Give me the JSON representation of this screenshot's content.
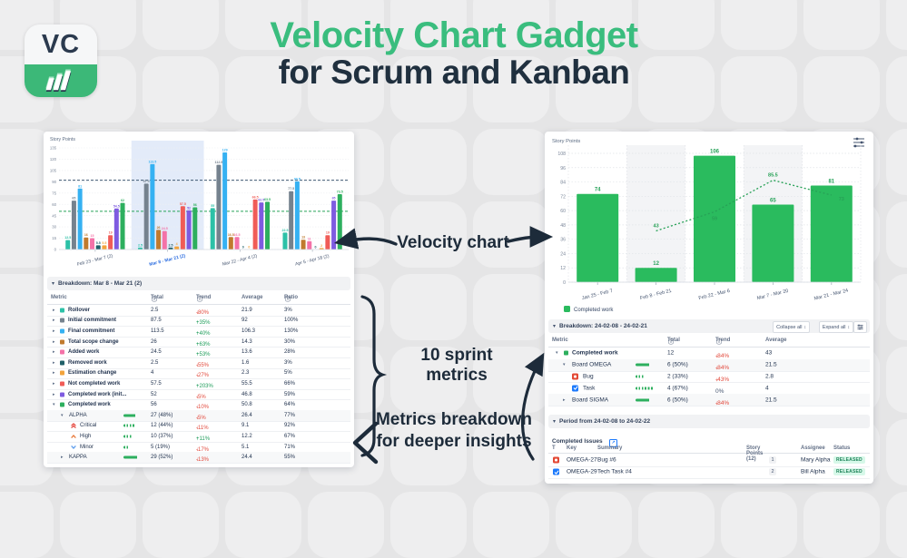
{
  "header": {
    "logo_text": "VC",
    "title_line1": "Velocity Chart Gadget",
    "title_line2": "for Scrum and Kanban"
  },
  "annotations": {
    "velocity_chart": "Velocity chart",
    "sprint_metrics": "10 sprint metrics",
    "breakdown_line1": "Metrics breakdown",
    "breakdown_line2": "for deeper insights"
  },
  "colors": {
    "accent_green": "#3abd7e",
    "navy": "#1d2b3a",
    "trend_up": "#1f9d5b",
    "trend_down": "#e2483b",
    "highlight_band": "#e3ebf9",
    "bar_green": "#2abb5e"
  },
  "chart_data": [
    {
      "type": "bar",
      "ylabel": "Story Points",
      "ylim": [
        0,
        135
      ],
      "ytick_step": 15,
      "grid": true,
      "categories": [
        "Feb 23 - Mar 7 (2)",
        "Mar 8 - Mar 21 (2)",
        "Mar 22 - Apr 4 (2)",
        "Apr 5 - Apr 18 (2)"
      ],
      "highlighted_category_index": 1,
      "series": [
        {
          "name": "Rollover",
          "color": "#2cc1a7",
          "values": [
            12.5,
            2.5,
            55,
            22.5
          ]
        },
        {
          "name": "Initial commitment",
          "color": "#75828e",
          "values": [
            65,
            87.5,
            112.5,
            77.5
          ]
        },
        {
          "name": "Final commitment",
          "color": "#35b1f2",
          "values": [
            81,
            113.5,
            129,
            90.5
          ]
        },
        {
          "name": "Total scope change",
          "color": "#c07a2e",
          "values": [
            16,
            26,
            16.5,
            13
          ]
        },
        {
          "name": "Added work",
          "color": "#f472a8",
          "values": [
            15,
            24.5,
            16.5,
            11
          ]
        },
        {
          "name": "Removed work",
          "color": "#1f5f68",
          "values": [
            5.5,
            2.5,
            0,
            0
          ]
        },
        {
          "name": "Estimation change",
          "color": "#f2a33c",
          "values": [
            5.5,
            4,
            0,
            2
          ]
        },
        {
          "name": "Not completed work",
          "color": "#f05c57",
          "values": [
            19,
            57.5,
            66.5,
            19
          ]
        },
        {
          "name": "Completed work (initial)",
          "color": "#7e5be0",
          "values": [
            54.5,
            52,
            62.5,
            65
          ]
        },
        {
          "name": "Completed work",
          "color": "#2daf5e",
          "values": [
            62,
            56,
            63.5,
            73.5
          ]
        }
      ],
      "reference_lines": [
        {
          "value": 92,
          "color": "#3f5872",
          "style": "dashed"
        },
        {
          "value": 50.8,
          "color": "#27a35a",
          "style": "dashed"
        }
      ]
    },
    {
      "type": "bar",
      "ylabel": "Story Points",
      "ylim": [
        0,
        108
      ],
      "ytick_step": 12,
      "grid": true,
      "categories": [
        "Jan 25 - Feb 7",
        "Feb 8 - Feb 21",
        "Feb 22 - Mar 6",
        "Mar 7 - Mar 20",
        "Mar 21 - Mar 24"
      ],
      "shaded_column_indexes": [
        1,
        3
      ],
      "series": [
        {
          "name": "Completed work",
          "color": "#2abb5e",
          "values": [
            74,
            12,
            106,
            65,
            81
          ]
        }
      ],
      "trend_line": {
        "color": "#27a156",
        "style": "dotted",
        "points": [
          {
            "category_index": 1,
            "value": 43
          },
          {
            "category_index": 2,
            "value": 59
          },
          {
            "category_index": 3,
            "value": 85.5
          },
          {
            "category_index": 4,
            "value": 73
          }
        ]
      },
      "legend": [
        {
          "label": "Completed work",
          "color": "#2abb5e"
        }
      ]
    }
  ],
  "left_panel": {
    "breakdown": {
      "title": "Breakdown: Mar 8 - Mar 21 (2)",
      "columns": [
        {
          "label": "Metric"
        },
        {
          "label": "Total",
          "info": true
        },
        {
          "label": "Trend",
          "info": true
        },
        {
          "label": "Average"
        },
        {
          "label": "Ratio",
          "info": true
        }
      ],
      "rows": [
        {
          "level": 0,
          "expand": "collapsed",
          "swatch": "#2cc1a7",
          "metric": "Rollover",
          "total": "2.5",
          "trend": "-80%",
          "trend_dir": "down",
          "average": "21.9",
          "ratio": "3%"
        },
        {
          "level": 0,
          "expand": "collapsed",
          "swatch": "#75828e",
          "metric": "Initial commitment",
          "total": "87.5",
          "trend": "+35%",
          "trend_dir": "up",
          "average": "92",
          "ratio": "100%"
        },
        {
          "level": 0,
          "expand": "collapsed",
          "swatch": "#35b1f2",
          "metric": "Final commitment",
          "total": "113.5",
          "trend": "+40%",
          "trend_dir": "up",
          "average": "106.3",
          "ratio": "130%"
        },
        {
          "level": 0,
          "expand": "collapsed",
          "swatch": "#c07a2e",
          "metric": "Total scope change",
          "total": "26",
          "trend": "+63%",
          "trend_dir": "up",
          "average": "14.3",
          "ratio": "30%"
        },
        {
          "level": 0,
          "expand": "collapsed",
          "swatch": "#f472a8",
          "metric": "Added work",
          "total": "24.5",
          "trend": "+53%",
          "trend_dir": "up",
          "average": "13.6",
          "ratio": "28%"
        },
        {
          "level": 0,
          "expand": "collapsed",
          "swatch": "#1f5f68",
          "metric": "Removed work",
          "total": "2.5",
          "trend": "-55%",
          "trend_dir": "down",
          "average": "1.6",
          "ratio": "3%"
        },
        {
          "level": 0,
          "expand": "collapsed",
          "swatch": "#f2a33c",
          "metric": "Estimation change",
          "total": "4",
          "trend": "-27%",
          "trend_dir": "down",
          "average": "2.3",
          "ratio": "5%"
        },
        {
          "level": 0,
          "expand": "collapsed",
          "swatch": "#f05c57",
          "metric": "Not completed work",
          "total": "57.5",
          "trend": "+203%",
          "trend_dir": "up",
          "average": "55.5",
          "ratio": "66%"
        },
        {
          "level": 0,
          "expand": "collapsed",
          "swatch": "#7e5be0",
          "metric": "Completed work (init...",
          "total": "52",
          "trend": "-5%",
          "trend_dir": "down",
          "average": "46.8",
          "ratio": "59%"
        },
        {
          "level": 0,
          "expand": "expanded",
          "swatch": "#2daf5e",
          "metric": "Completed work",
          "total": "56",
          "trend": "-10%",
          "trend_dir": "down",
          "average": "50.8",
          "ratio": "64%"
        },
        {
          "level": 1,
          "expand": "expanded",
          "metric": "ALPHA",
          "bar": {
            "pct": 48,
            "style": "solid"
          },
          "total": "27 (48%)",
          "trend": "-5%",
          "trend_dir": "down",
          "average": "26.4",
          "ratio": "77%",
          "shaded": true
        },
        {
          "level": 2,
          "icon": "priority-critical",
          "metric": "Critical",
          "bar": {
            "pct": 44,
            "style": "dotted"
          },
          "total": "12 (44%)",
          "trend": "-11%",
          "trend_dir": "down",
          "average": "9.1",
          "ratio": "92%"
        },
        {
          "level": 2,
          "icon": "priority-high",
          "metric": "High",
          "bar": {
            "pct": 37,
            "style": "dotted"
          },
          "total": "10 (37%)",
          "trend": "+11%",
          "trend_dir": "up",
          "average": "12.2",
          "ratio": "67%"
        },
        {
          "level": 2,
          "icon": "priority-minor",
          "metric": "Minor",
          "bar": {
            "pct": 19,
            "style": "dotted"
          },
          "total": "5 (19%)",
          "trend": "-17%",
          "trend_dir": "down",
          "average": "5.1",
          "ratio": "71%"
        },
        {
          "level": 1,
          "expand": "collapsed",
          "metric": "KAPPA",
          "bar": {
            "pct": 52,
            "style": "solid"
          },
          "total": "29 (52%)",
          "trend": "-13%",
          "trend_dir": "down",
          "average": "24.4",
          "ratio": "55%",
          "shaded": true
        }
      ]
    }
  },
  "right_panel": {
    "breakdown": {
      "title": "Breakdown: 24-02-08 - 24-02-21",
      "collapse_all": "Collapse all",
      "expand_all": "Expand all",
      "columns": [
        {
          "label": "Metric"
        },
        {
          "label": "Total",
          "info": true
        },
        {
          "label": "Trend",
          "info": true
        },
        {
          "label": "Average"
        }
      ],
      "rows": [
        {
          "level": 0,
          "expand": "expanded",
          "swatch": "#2daf5e",
          "metric": "Completed work",
          "total": "12",
          "trend": "-84%",
          "trend_dir": "down",
          "average": "43"
        },
        {
          "level": 1,
          "expand": "expanded",
          "metric": "Board OMEGA",
          "bar": {
            "pct": 50,
            "style": "solid"
          },
          "total": "6 (50%)",
          "trend": "-84%",
          "trend_dir": "down",
          "average": "21.5",
          "shaded": true
        },
        {
          "level": 2,
          "icon": "bug",
          "metric": "Bug",
          "bar": {
            "pct": 33,
            "style": "dotted"
          },
          "total": "2 (33%)",
          "trend": "-43%",
          "trend_dir": "down",
          "average": "2.8"
        },
        {
          "level": 2,
          "icon": "task",
          "metric": "Task",
          "bar": {
            "pct": 67,
            "style": "dotted"
          },
          "total": "4 (67%)",
          "trend": "0%",
          "trend_dir": "flat",
          "average": "4"
        },
        {
          "level": 1,
          "expand": "collapsed",
          "metric": "Board SIGMA",
          "bar": {
            "pct": 50,
            "style": "solid"
          },
          "total": "6 (50%)",
          "trend": "-84%",
          "trend_dir": "down",
          "average": "21.5",
          "shaded": true
        }
      ]
    },
    "period": {
      "title": "Period from 24-02-08 to 24-02-22",
      "completed_issues_label": "Completed Issues",
      "columns": [
        "T",
        "Key",
        "Summary",
        "Story Points (12)",
        "Assignee",
        "Status"
      ],
      "rows": [
        {
          "type": "bug",
          "key": "OMEGA-27",
          "summary": "Bug #6",
          "story_points": "1",
          "assignee": "Mary Alpha",
          "status": "RELEASED"
        },
        {
          "type": "task",
          "key": "OMEGA-29",
          "summary": "Tech Task #4",
          "story_points": "2",
          "assignee": "Bill Alpha",
          "status": "RELEASED"
        }
      ]
    }
  },
  "icons": {
    "chart_settings": "sliders-icon",
    "collapse": "collapse-vertical-icon",
    "expand": "expand-vertical-icon",
    "external_link": "external-link-icon",
    "info": "info-circle-icon"
  }
}
